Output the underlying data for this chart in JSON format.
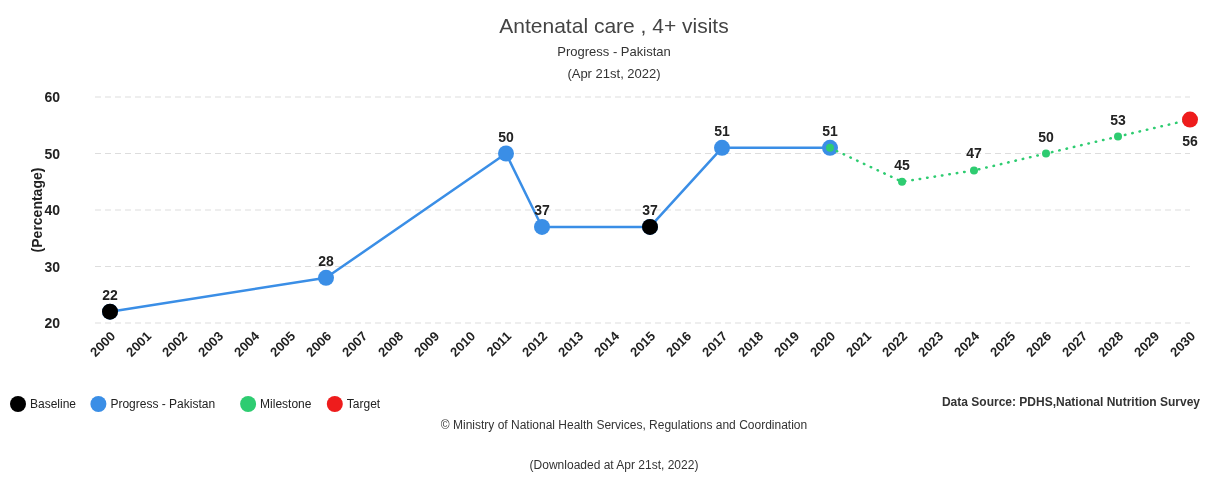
{
  "chart_data": {
    "type": "line",
    "title": "Antenatal care , 4+ visits",
    "subtitle": "Progress - Pakistan",
    "ylabel": "(Percentage)",
    "categories": [
      "2000",
      "2001",
      "2002",
      "2003",
      "2004",
      "2005",
      "2006",
      "2007",
      "2008",
      "2009",
      "2010",
      "2011",
      "2012",
      "2013",
      "2014",
      "2015",
      "2016",
      "2017",
      "2018",
      "2019",
      "2020",
      "2021",
      "2022",
      "2023",
      "2024",
      "2025",
      "2026",
      "2027",
      "2028",
      "2029",
      "2030"
    ],
    "ylim": [
      20,
      60
    ],
    "yticks": [
      20,
      30,
      40,
      50,
      60
    ],
    "grid": "y",
    "legend": "bottom left",
    "marker": "circle",
    "series": [
      {
        "name": "Progress - Pakistan",
        "color": "#3a8ee6",
        "line_style": "solid",
        "values": [
          22,
          null,
          null,
          null,
          null,
          null,
          28,
          null,
          null,
          null,
          null,
          50,
          37,
          null,
          null,
          37,
          null,
          51,
          null,
          null,
          51,
          null,
          null,
          null,
          null,
          null,
          null,
          null,
          null,
          null,
          null
        ],
        "value_labels": [
          null,
          null,
          null,
          null,
          null,
          null,
          "28",
          null,
          null,
          null,
          null,
          "50",
          "37",
          null,
          null,
          null,
          null,
          "51",
          null,
          null,
          "51",
          null,
          null,
          null,
          null,
          null,
          null,
          null,
          null,
          null,
          null
        ]
      },
      {
        "name": "Milestone",
        "color": "#2ecc71",
        "line_style": "dotted",
        "values": [
          null,
          null,
          null,
          null,
          null,
          null,
          null,
          null,
          null,
          null,
          null,
          null,
          null,
          null,
          null,
          null,
          null,
          null,
          null,
          null,
          51,
          null,
          45,
          null,
          47,
          null,
          50,
          null,
          53,
          null,
          56
        ],
        "value_labels": [
          null,
          null,
          null,
          null,
          null,
          null,
          null,
          null,
          null,
          null,
          null,
          null,
          null,
          null,
          null,
          null,
          null,
          null,
          null,
          null,
          null,
          null,
          "45",
          null,
          "47",
          null,
          "50",
          null,
          "53",
          null,
          null
        ]
      },
      {
        "name": "Baseline",
        "type": "scatter",
        "color": "#000000",
        "values": [
          22,
          null,
          null,
          null,
          null,
          null,
          null,
          null,
          null,
          null,
          null,
          null,
          null,
          null,
          null,
          37,
          null,
          null,
          null,
          null,
          null,
          null,
          null,
          null,
          null,
          null,
          null,
          null,
          null,
          null,
          null
        ],
        "value_labels": [
          "22",
          null,
          null,
          null,
          null,
          null,
          null,
          null,
          null,
          null,
          null,
          null,
          null,
          null,
          null,
          "37",
          null,
          null,
          null,
          null,
          null,
          null,
          null,
          null,
          null,
          null,
          null,
          null,
          null,
          null,
          null
        ]
      },
      {
        "name": "Target",
        "type": "scatter",
        "color": "#ee1c1c",
        "values": [
          null,
          null,
          null,
          null,
          null,
          null,
          null,
          null,
          null,
          null,
          null,
          null,
          null,
          null,
          null,
          null,
          null,
          null,
          null,
          null,
          null,
          null,
          null,
          null,
          null,
          null,
          null,
          null,
          null,
          null,
          56
        ],
        "value_labels": [
          null,
          null,
          null,
          null,
          null,
          null,
          null,
          null,
          null,
          null,
          null,
          null,
          null,
          null,
          null,
          null,
          null,
          null,
          null,
          null,
          null,
          null,
          null,
          null,
          null,
          null,
          null,
          null,
          null,
          null,
          "56"
        ]
      }
    ],
    "annotations": [
      "(Apr 21st, 2022)",
      "Data Source: PDHS,National Nutrition Survey",
      "© Ministry of National Health Services, Regulations and Coordination",
      "(Downloaded at Apr 21st, 2022)"
    ]
  }
}
